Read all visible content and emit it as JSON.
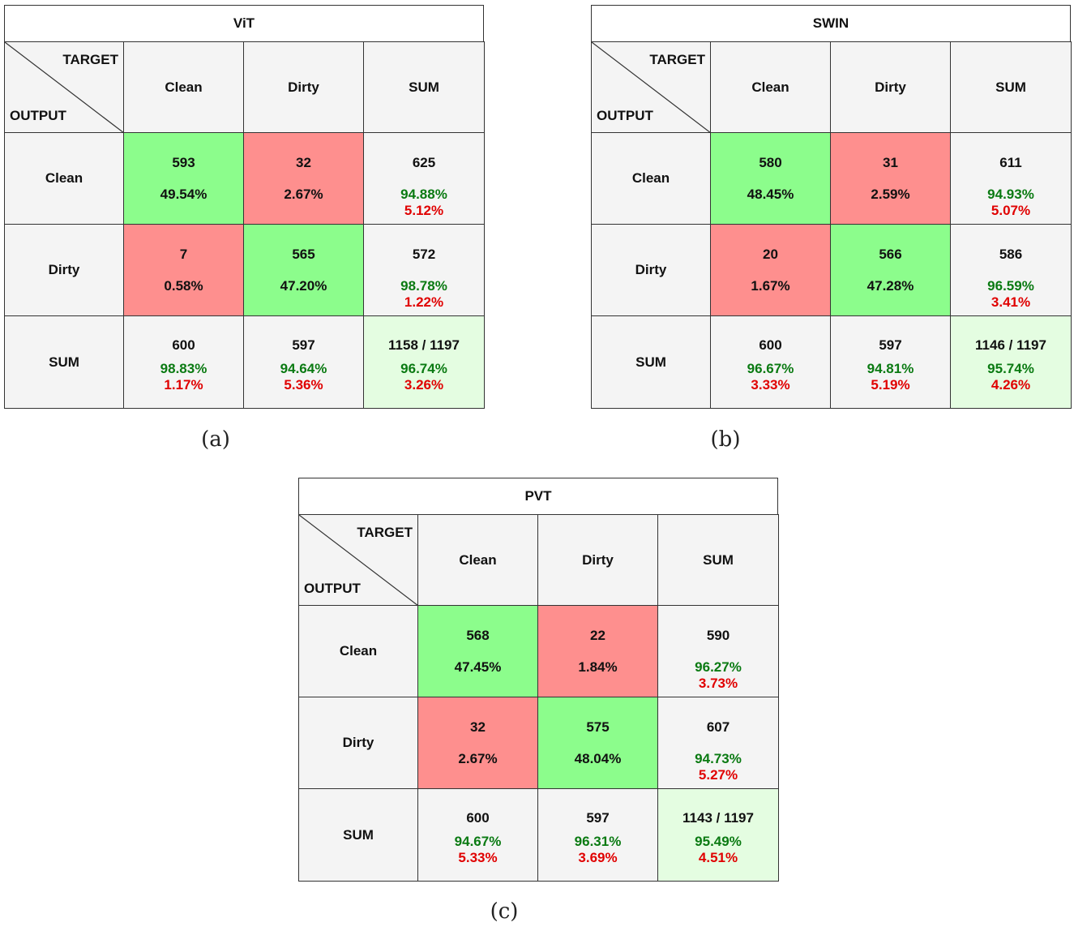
{
  "chart_data": [
    {
      "type": "table",
      "title": "ViT",
      "panel_label": "(a)",
      "corner": {
        "target": "TARGET",
        "output": "OUTPUT"
      },
      "col_headers": [
        "Clean",
        "Dirty",
        "SUM"
      ],
      "row_headers": [
        "Clean",
        "Dirty",
        "SUM"
      ],
      "matrix": [
        {
          "count": "593",
          "pct": "49.54%",
          "kind": "correct"
        },
        {
          "count": "32",
          "pct": "2.67%",
          "kind": "wrong"
        },
        {
          "count": "625",
          "pct_good": "94.88%",
          "pct_bad": "5.12%",
          "kind": "sum"
        },
        {
          "count": "7",
          "pct": "0.58%",
          "kind": "wrong"
        },
        {
          "count": "565",
          "pct": "47.20%",
          "kind": "correct"
        },
        {
          "count": "572",
          "pct_good": "98.78%",
          "pct_bad": "1.22%",
          "kind": "sum"
        },
        {
          "count": "600",
          "pct_good": "98.83%",
          "pct_bad": "1.17%",
          "kind": "sum"
        },
        {
          "count": "597",
          "pct_good": "94.64%",
          "pct_bad": "5.36%",
          "kind": "sum"
        },
        {
          "count": "1158 / 1197",
          "pct_good": "96.74%",
          "pct_bad": "3.26%",
          "kind": "total"
        }
      ]
    },
    {
      "type": "table",
      "title": "SWIN",
      "panel_label": "(b)",
      "corner": {
        "target": "TARGET",
        "output": "OUTPUT"
      },
      "col_headers": [
        "Clean",
        "Dirty",
        "SUM"
      ],
      "row_headers": [
        "Clean",
        "Dirty",
        "SUM"
      ],
      "matrix": [
        {
          "count": "580",
          "pct": "48.45%",
          "kind": "correct"
        },
        {
          "count": "31",
          "pct": "2.59%",
          "kind": "wrong"
        },
        {
          "count": "611",
          "pct_good": "94.93%",
          "pct_bad": "5.07%",
          "kind": "sum"
        },
        {
          "count": "20",
          "pct": "1.67%",
          "kind": "wrong"
        },
        {
          "count": "566",
          "pct": "47.28%",
          "kind": "correct"
        },
        {
          "count": "586",
          "pct_good": "96.59%",
          "pct_bad": "3.41%",
          "kind": "sum"
        },
        {
          "count": "600",
          "pct_good": "96.67%",
          "pct_bad": "3.33%",
          "kind": "sum"
        },
        {
          "count": "597",
          "pct_good": "94.81%",
          "pct_bad": "5.19%",
          "kind": "sum"
        },
        {
          "count": "1146 / 1197",
          "pct_good": "95.74%",
          "pct_bad": "4.26%",
          "kind": "total"
        }
      ]
    },
    {
      "type": "table",
      "title": "PVT",
      "panel_label": "(c)",
      "corner": {
        "target": "TARGET",
        "output": "OUTPUT"
      },
      "col_headers": [
        "Clean",
        "Dirty",
        "SUM"
      ],
      "row_headers": [
        "Clean",
        "Dirty",
        "SUM"
      ],
      "matrix": [
        {
          "count": "568",
          "pct": "47.45%",
          "kind": "correct"
        },
        {
          "count": "22",
          "pct": "1.84%",
          "kind": "wrong"
        },
        {
          "count": "590",
          "pct_good": "96.27%",
          "pct_bad": "3.73%",
          "kind": "sum"
        },
        {
          "count": "32",
          "pct": "2.67%",
          "kind": "wrong"
        },
        {
          "count": "575",
          "pct": "48.04%",
          "kind": "correct"
        },
        {
          "count": "607",
          "pct_good": "94.73%",
          "pct_bad": "5.27%",
          "kind": "sum"
        },
        {
          "count": "600",
          "pct_good": "94.67%",
          "pct_bad": "5.33%",
          "kind": "sum"
        },
        {
          "count": "597",
          "pct_good": "96.31%",
          "pct_bad": "3.69%",
          "kind": "sum"
        },
        {
          "count": "1143 / 1197",
          "pct_good": "95.49%",
          "pct_bad": "4.51%",
          "kind": "total"
        }
      ]
    }
  ]
}
